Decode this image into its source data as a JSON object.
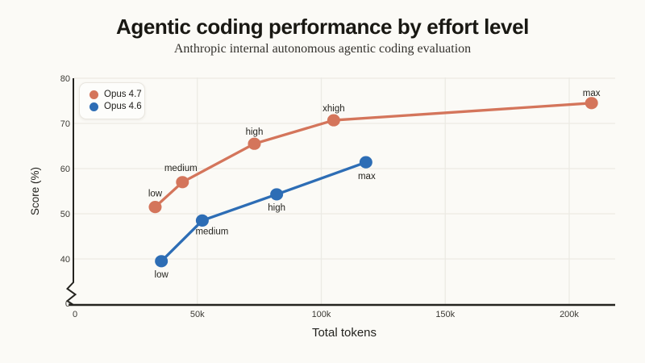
{
  "header": {
    "title": "Agentic coding performance by effort level",
    "subtitle": "Anthropic internal autonomous agentic coding evaluation"
  },
  "chart_data": {
    "type": "line",
    "title": "Agentic coding performance by effort level",
    "subtitle": "Anthropic internal autonomous agentic coding evaluation",
    "xlabel": "Total tokens",
    "ylabel": "Score (%)",
    "grid": true,
    "axis_break_on_y": true,
    "legend_position": "top-left",
    "xlim_tokens": [
      0,
      218000
    ],
    "ylim_displayed": [
      40,
      80
    ],
    "xticks": [
      {
        "value": 0,
        "label": "0"
      },
      {
        "value": 50000,
        "label": "50k"
      },
      {
        "value": 100000,
        "label": "100k"
      },
      {
        "value": 150000,
        "label": "150k"
      },
      {
        "value": 200000,
        "label": "200k"
      }
    ],
    "yticks": [
      {
        "value": 0,
        "label": "0"
      },
      {
        "value": 40,
        "label": "40"
      },
      {
        "value": 50,
        "label": "50"
      },
      {
        "value": 60,
        "label": "60"
      },
      {
        "value": 70,
        "label": "70"
      },
      {
        "value": 80,
        "label": "80"
      }
    ],
    "series": [
      {
        "name": "Opus 4.7",
        "color": "#D4755B",
        "points": [
          {
            "label": "low",
            "tokens": 33000,
            "score": 51.5,
            "dx": 0,
            "dy": -13
          },
          {
            "label": "medium",
            "tokens": 44000,
            "score": 57.0,
            "dx": -2,
            "dy": -14
          },
          {
            "label": "high",
            "tokens": 73000,
            "score": 65.5,
            "dx": 0,
            "dy": -11
          },
          {
            "label": "xhigh",
            "tokens": 105000,
            "score": 70.7,
            "dx": 0,
            "dy": -11
          },
          {
            "label": "max",
            "tokens": 209000,
            "score": 74.5,
            "dx": 0,
            "dy": -9
          }
        ]
      },
      {
        "name": "Opus 4.6",
        "color": "#2D6DB5",
        "points": [
          {
            "label": "low",
            "tokens": 35500,
            "score": 39.5,
            "dx": 0,
            "dy": 20
          },
          {
            "label": "medium",
            "tokens": 52000,
            "score": 48.5,
            "dx": 12,
            "dy": 17
          },
          {
            "label": "high",
            "tokens": 82000,
            "score": 54.3,
            "dx": 0,
            "dy": 20
          },
          {
            "label": "max",
            "tokens": 118000,
            "score": 61.4,
            "dx": 1,
            "dy": 21
          }
        ]
      }
    ]
  },
  "colors": {
    "background": "#FBFAF6",
    "gridline": "#ECEAE4",
    "axis": "#24231F",
    "title_text": "#191813",
    "subtitle_text": "#33312C",
    "tick_text": "#3B3934",
    "legend_bg": "#FDFDFB",
    "legend_border": "#E9E6DF",
    "series_orange": "#D4755B",
    "series_blue": "#2D6DB5"
  }
}
